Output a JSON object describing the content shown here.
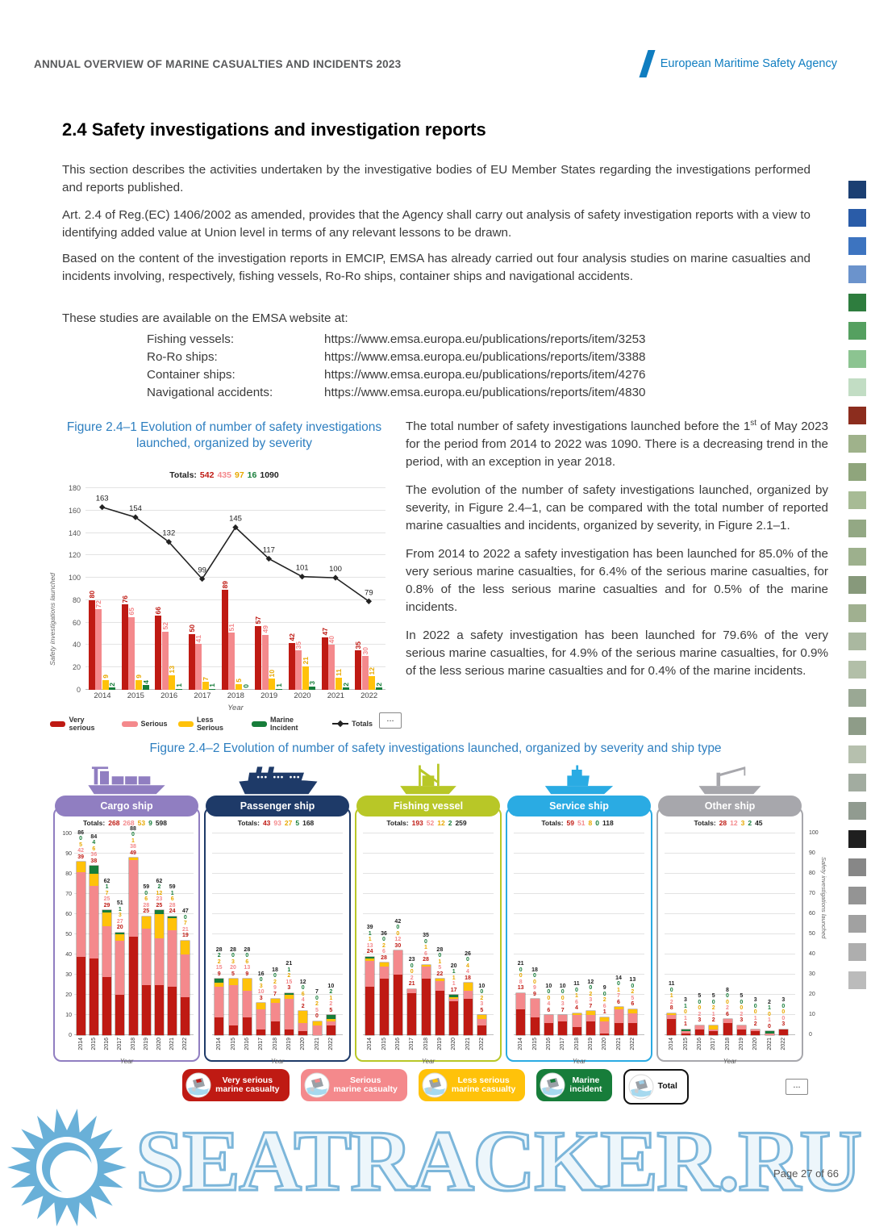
{
  "page": {
    "header_title": "ANNUAL OVERVIEW OF MARINE CASUALTIES AND INCIDENTS 2023",
    "agency": "European Maritime Safety Agency",
    "footer": "Page 27 of 66",
    "watermark": "SEATRACKER.RU"
  },
  "section": {
    "heading": "2.4 Safety investigations and investigation reports",
    "paragraph1": "This section describes the activities undertaken by the investigative bodies of EU Member States regarding the investigations performed and reports published.",
    "paragraph2": "Art. 2.4 of Reg.(EC) 1406/2002 as amended, provides that the Agency shall carry out analysis of safety investigation reports with a view to identifying added value at Union level in terms of any relevant lessons to be drawn.",
    "paragraph3": "Based on the content of the investigation reports in EMCIP, EMSA has already carried out four analysis studies on marine casualties and incidents involving, respectively, fishing vessels, Ro-Ro ships, container ships and navigational accidents.",
    "studies_intro": "These studies are available on the EMSA website at:",
    "links": [
      {
        "label": "Fishing vessels:",
        "url": "https://www.emsa.europa.eu/publications/reports/item/3253"
      },
      {
        "label": "Ro-Ro ships:",
        "url": "https://www.emsa.europa.eu/publications/reports/item/3388"
      },
      {
        "label": "Container ships:",
        "url": "https://www.emsa.europa.eu/publications/reports/item/4276"
      },
      {
        "label": "Navigational accidents:",
        "url": "https://www.emsa.europa.eu/publications/reports/item/4830"
      }
    ]
  },
  "side_text": {
    "p1_pre": "The total number of safety investigations launched before the 1",
    "p1_sup": "st",
    "p1_post": " of May 2023 for the period from 2014 to 2022 was 1090. There is a decreasing trend in the period, with an exception in year 2018.",
    "p2": "The evolution of the number of safety investigations launched, organized by severity, in Figure 2.4–1, can be compared with the total number of reported marine casualties and incidents, organized by severity, in Figure 2.1–1.",
    "p3": "From 2014 to 2022 a safety investigation has been launched for 85.0% of the very serious marine casualties, for 6.4% of the serious marine casualties, for 0.8% of the less serious marine casualties and for 0.5% of the marine incidents.",
    "p4": "In 2022 a safety investigation has been launched for 79.6% of the very serious marine casualties, for 4.9% of the serious marine casualties, for 0.9% of the less serious marine casualties and for 0.4% of the marine incidents."
  },
  "severity_colors": {
    "very_serious": "#bf1a13",
    "serious": "#f4898c",
    "less_serious": "#ffc20a",
    "marine_incident": "#177d3a",
    "totals_line": "#222222"
  },
  "chart_data": [
    {
      "id": "fig1",
      "type": "bar",
      "caption": "Figure 2.4–1 Evolution of number of safety investigations launched, organized by severity",
      "totals_label": "Totals:",
      "totals": {
        "very_serious": 542,
        "serious": 435,
        "less_serious": 97,
        "marine_incident": 16,
        "all": 1090
      },
      "ylabel": "Safety investigations launched",
      "xlabel": "Year",
      "ylim": [
        0,
        180
      ],
      "ytick_step": 20,
      "years": [
        "2014",
        "2015",
        "2016",
        "2017",
        "2018",
        "2019",
        "2020",
        "2021",
        "2022"
      ],
      "series": [
        {
          "key": "very_serious",
          "name": "Very serious",
          "values": [
            80,
            76,
            66,
            50,
            89,
            57,
            42,
            47,
            35
          ]
        },
        {
          "key": "serious",
          "name": "Serious",
          "values": [
            72,
            65,
            52,
            41,
            51,
            49,
            35,
            40,
            30
          ]
        },
        {
          "key": "less_serious",
          "name": "Less Serious",
          "values": [
            9,
            9,
            13,
            7,
            5,
            10,
            21,
            11,
            12
          ]
        },
        {
          "key": "marine_incident",
          "name": "Marine Incident",
          "values": [
            2,
            4,
            1,
            1,
            0,
            1,
            3,
            2,
            2
          ]
        }
      ],
      "line": {
        "name": "Totals",
        "values": [
          163,
          154,
          132,
          99,
          145,
          117,
          101,
          100,
          79
        ]
      },
      "more_button": "..."
    },
    {
      "id": "fig2",
      "type": "stacked-bar-small-multiples",
      "caption": "Figure 2.4–2 Evolution of number of safety investigations launched, organized by severity and ship type",
      "ylabel": "Safety investigations launched",
      "xlabel": "Year",
      "ylim": [
        0,
        100
      ],
      "ytick_step": 10,
      "totals_label": "Totals:",
      "years": [
        "2014",
        "2015",
        "2016",
        "2017",
        "2018",
        "2019",
        "2020",
        "2021",
        "2022"
      ],
      "panels": [
        {
          "label": "Cargo ship",
          "icon": "cargo-ship-icon",
          "color": "#907ec1",
          "totals": {
            "very_serious": 268,
            "serious": 268,
            "less_serious": 53,
            "marine_incident": 9,
            "all": 598
          },
          "very_serious": [
            39,
            38,
            29,
            20,
            49,
            25,
            25,
            24,
            19
          ],
          "serious": [
            42,
            36,
            25,
            27,
            38,
            28,
            23,
            28,
            21
          ],
          "less_serious": [
            5,
            6,
            7,
            3,
            1,
            6,
            12,
            6,
            7
          ],
          "marine_incident": [
            0,
            4,
            1,
            1,
            0,
            0,
            2,
            1,
            0
          ],
          "year_totals": [
            86,
            84,
            62,
            51,
            88,
            59,
            62,
            59,
            47
          ]
        },
        {
          "label": "Passenger ship",
          "icon": "passenger-ship-icon",
          "color": "#1e3a68",
          "totals": {
            "very_serious": 43,
            "serious": 93,
            "less_serious": 27,
            "marine_incident": 5,
            "all": 168
          },
          "very_serious": [
            9,
            5,
            9,
            3,
            7,
            3,
            2,
            0,
            5
          ],
          "serious": [
            15,
            20,
            13,
            10,
            9,
            15,
            4,
            5,
            2
          ],
          "less_serious": [
            2,
            3,
            6,
            3,
            2,
            2,
            6,
            2,
            1
          ],
          "marine_incident": [
            2,
            0,
            0,
            0,
            0,
            1,
            0,
            0,
            2
          ],
          "year_totals": [
            28,
            28,
            28,
            16,
            18,
            21,
            12,
            7,
            10
          ]
        },
        {
          "label": "Fishing vessel",
          "icon": "fishing-vessel-icon",
          "color": "#b8c727",
          "totals": {
            "very_serious": 193,
            "serious": 52,
            "less_serious": 12,
            "marine_incident": 2,
            "all": 259
          },
          "very_serious": [
            24,
            28,
            30,
            21,
            28,
            22,
            17,
            18,
            5
          ],
          "serious": [
            13,
            6,
            12,
            2,
            6,
            5,
            1,
            4,
            3
          ],
          "less_serious": [
            1,
            2,
            0,
            0,
            1,
            1,
            1,
            4,
            2
          ],
          "marine_incident": [
            1,
            0,
            0,
            0,
            0,
            0,
            1,
            0,
            0
          ],
          "year_totals": [
            39,
            36,
            42,
            23,
            35,
            28,
            20,
            26,
            10
          ]
        },
        {
          "label": "Service ship",
          "icon": "service-ship-icon",
          "color": "#2aabe3",
          "totals": {
            "very_serious": 59,
            "serious": 51,
            "less_serious": 8,
            "marine_incident": 0,
            "all": 118
          },
          "very_serious": [
            13,
            9,
            6,
            7,
            4,
            7,
            1,
            6,
            6
          ],
          "serious": [
            8,
            9,
            4,
            3,
            6,
            3,
            6,
            7,
            5
          ],
          "less_serious": [
            0,
            0,
            0,
            0,
            1,
            2,
            2,
            1,
            2
          ],
          "marine_incident": [
            0,
            0,
            0,
            0,
            0,
            0,
            0,
            0,
            0
          ],
          "year_totals": [
            21,
            18,
            10,
            10,
            11,
            12,
            9,
            14,
            13
          ]
        },
        {
          "label": "Other ship",
          "icon": "other-ship-icon",
          "color": "#a7a7ac",
          "totals": {
            "very_serious": 28,
            "serious": 12,
            "less_serious": 3,
            "marine_incident": 2,
            "all": 45
          },
          "very_serious": [
            8,
            1,
            3,
            2,
            6,
            3,
            2,
            0,
            3
          ],
          "serious": [
            2,
            1,
            2,
            1,
            2,
            2,
            1,
            1,
            0
          ],
          "less_serious": [
            1,
            0,
            0,
            2,
            0,
            0,
            0,
            0,
            0
          ],
          "marine_incident": [
            0,
            1,
            0,
            0,
            0,
            0,
            0,
            1,
            0
          ],
          "year_totals": [
            11,
            3,
            5,
            5,
            8,
            5,
            3,
            2,
            3
          ]
        }
      ],
      "legend": [
        {
          "key": "very_serious",
          "lines": [
            "Very serious",
            "marine casualty"
          ]
        },
        {
          "key": "serious",
          "lines": [
            "Serious",
            "marine casualty"
          ]
        },
        {
          "key": "less_serious",
          "lines": [
            "Less serious",
            "marine casualty"
          ]
        },
        {
          "key": "marine_incident",
          "lines": [
            "Marine",
            "incident"
          ]
        },
        {
          "key": "total",
          "lines": [
            "Total"
          ]
        }
      ],
      "more_button": "..."
    }
  ],
  "edge_strip": {
    "colors": [
      "#1b3f72",
      "#2a5ca8",
      "#3d74c0",
      "#6b93cc",
      "#2e7d3e",
      "#55a060",
      "#8cc491",
      "#c2ddc4",
      "#8c2d1e",
      "#9fb28b",
      "#8fa57c",
      "#a7bb95",
      "#93a884",
      "#9db08d",
      "#87997b",
      "#a0b090",
      "#aab8a0",
      "#b2bfa8",
      "#9aa894",
      "#8e9c88",
      "#b6c0ae",
      "#a2aca0",
      "#919b90",
      "#1f1f1f",
      "#878787",
      "#949494",
      "#a1a1a1",
      "#aeaeae",
      "#bbbbbb"
    ]
  }
}
